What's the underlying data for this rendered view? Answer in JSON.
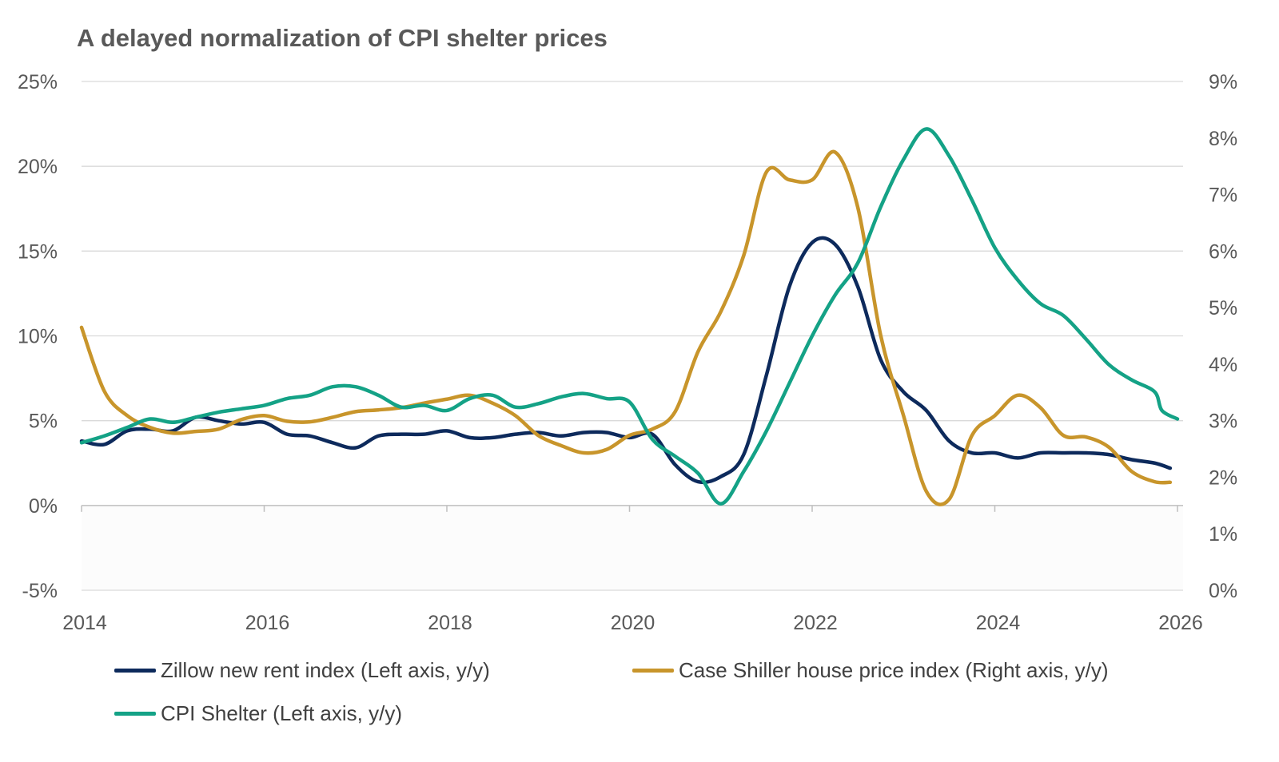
{
  "chart_data": {
    "type": "line",
    "title": "A delayed normalization of CPI shelter prices",
    "x_ticks": [
      "2014",
      "2016",
      "2018",
      "2020",
      "2022",
      "2024",
      "2026"
    ],
    "xlim": [
      2014,
      2026
    ],
    "y_left": {
      "lim": [
        -5,
        25
      ],
      "ticks": [
        "-5%",
        "0%",
        "5%",
        "10%",
        "15%",
        "20%",
        "25%"
      ]
    },
    "y_right": {
      "lim": [
        0,
        9
      ],
      "ticks": [
        "0%",
        "1%",
        "2%",
        "3%",
        "4%",
        "5%",
        "6%",
        "7%",
        "8%",
        "9%"
      ]
    },
    "grid": true,
    "legend_position": "bottom",
    "series": [
      {
        "name": "Zillow new rent index (Left axis, y/y)",
        "axis": "left",
        "color": "#0d2a5c",
        "x": [
          2014,
          2014.25,
          2014.5,
          2014.75,
          2015,
          2015.25,
          2015.5,
          2015.75,
          2016,
          2016.25,
          2016.5,
          2016.75,
          2017,
          2017.25,
          2017.5,
          2017.75,
          2018,
          2018.25,
          2018.5,
          2018.75,
          2019,
          2019.25,
          2019.5,
          2019.75,
          2020,
          2020.25,
          2020.5,
          2020.75,
          2021,
          2021.25,
          2021.5,
          2021.75,
          2022,
          2022.25,
          2022.5,
          2022.75,
          2023,
          2023.25,
          2023.5,
          2023.75,
          2024,
          2024.25,
          2024.5,
          2024.75,
          2025,
          2025.25,
          2025.5,
          2025.75,
          2025.92
        ],
        "y": [
          3.8,
          3.6,
          4.4,
          4.5,
          4.4,
          5.2,
          5.0,
          4.8,
          4.9,
          4.2,
          4.1,
          3.7,
          3.4,
          4.1,
          4.2,
          4.2,
          4.4,
          4.0,
          4.0,
          4.2,
          4.3,
          4.1,
          4.3,
          4.3,
          4.0,
          4.2,
          2.4,
          1.4,
          1.7,
          3.0,
          7.7,
          12.9,
          15.5,
          15.4,
          12.9,
          8.6,
          6.7,
          5.6,
          3.8,
          3.1,
          3.1,
          2.8,
          3.1,
          3.1,
          3.1,
          3.0,
          2.7,
          2.5,
          2.2
        ]
      },
      {
        "name": "Case Shiller house price index (Right axis, y/y)",
        "axis": "right",
        "color": "#c8952b",
        "x": [
          2014,
          2014.25,
          2014.5,
          2014.75,
          2015,
          2015.25,
          2015.5,
          2015.75,
          2016,
          2016.25,
          2016.5,
          2016.75,
          2017,
          2017.25,
          2017.5,
          2017.75,
          2018,
          2018.25,
          2018.5,
          2018.75,
          2019,
          2019.25,
          2019.5,
          2019.75,
          2020,
          2020.25,
          2020.5,
          2020.75,
          2021,
          2021.25,
          2021.5,
          2021.75,
          2022,
          2022.25,
          2022.5,
          2022.75,
          2023,
          2023.25,
          2023.5,
          2023.75,
          2024,
          2024.25,
          2024.5,
          2024.75,
          2025,
          2025.25,
          2025.5,
          2025.75,
          2025.92
        ],
        "y": [
          4.65,
          3.52,
          3.09,
          2.88,
          2.78,
          2.81,
          2.85,
          3.02,
          3.09,
          2.99,
          2.98,
          3.06,
          3.16,
          3.19,
          3.23,
          3.31,
          3.38,
          3.45,
          3.31,
          3.09,
          2.74,
          2.56,
          2.43,
          2.49,
          2.74,
          2.85,
          3.16,
          4.22,
          4.93,
          5.92,
          7.4,
          7.26,
          7.26,
          7.75,
          6.77,
          4.51,
          3.09,
          1.75,
          1.61,
          2.74,
          3.09,
          3.45,
          3.23,
          2.74,
          2.71,
          2.53,
          2.1,
          1.92,
          1.91
        ]
      },
      {
        "name": "CPI Shelter (Left axis, y/y)",
        "axis": "left",
        "color": "#14a286",
        "x": [
          2014,
          2014.25,
          2014.5,
          2014.75,
          2015,
          2015.25,
          2015.5,
          2015.75,
          2016,
          2016.25,
          2016.5,
          2016.75,
          2017,
          2017.25,
          2017.5,
          2017.75,
          2018,
          2018.25,
          2018.5,
          2018.75,
          2019,
          2019.25,
          2019.5,
          2019.75,
          2020,
          2020.25,
          2020.5,
          2020.75,
          2021,
          2021.25,
          2021.5,
          2021.75,
          2022,
          2022.25,
          2022.5,
          2022.75,
          2023,
          2023.25,
          2023.5,
          2023.75,
          2024,
          2024.25,
          2024.5,
          2024.75,
          2025,
          2025.25,
          2025.5,
          2025.75,
          2025.83,
          2026
        ],
        "y": [
          3.7,
          4.1,
          4.6,
          5.1,
          4.9,
          5.2,
          5.5,
          5.7,
          5.9,
          6.3,
          6.5,
          7.0,
          7.0,
          6.5,
          5.8,
          5.9,
          5.6,
          6.3,
          6.5,
          5.8,
          6.0,
          6.4,
          6.6,
          6.3,
          6.1,
          3.9,
          2.9,
          1.9,
          0.1,
          2.0,
          4.4,
          7.2,
          10.0,
          12.4,
          14.3,
          17.6,
          20.4,
          22.2,
          20.6,
          18.0,
          15.2,
          13.3,
          11.9,
          11.2,
          9.8,
          8.3,
          7.4,
          6.7,
          5.6,
          5.1
        ]
      }
    ]
  }
}
